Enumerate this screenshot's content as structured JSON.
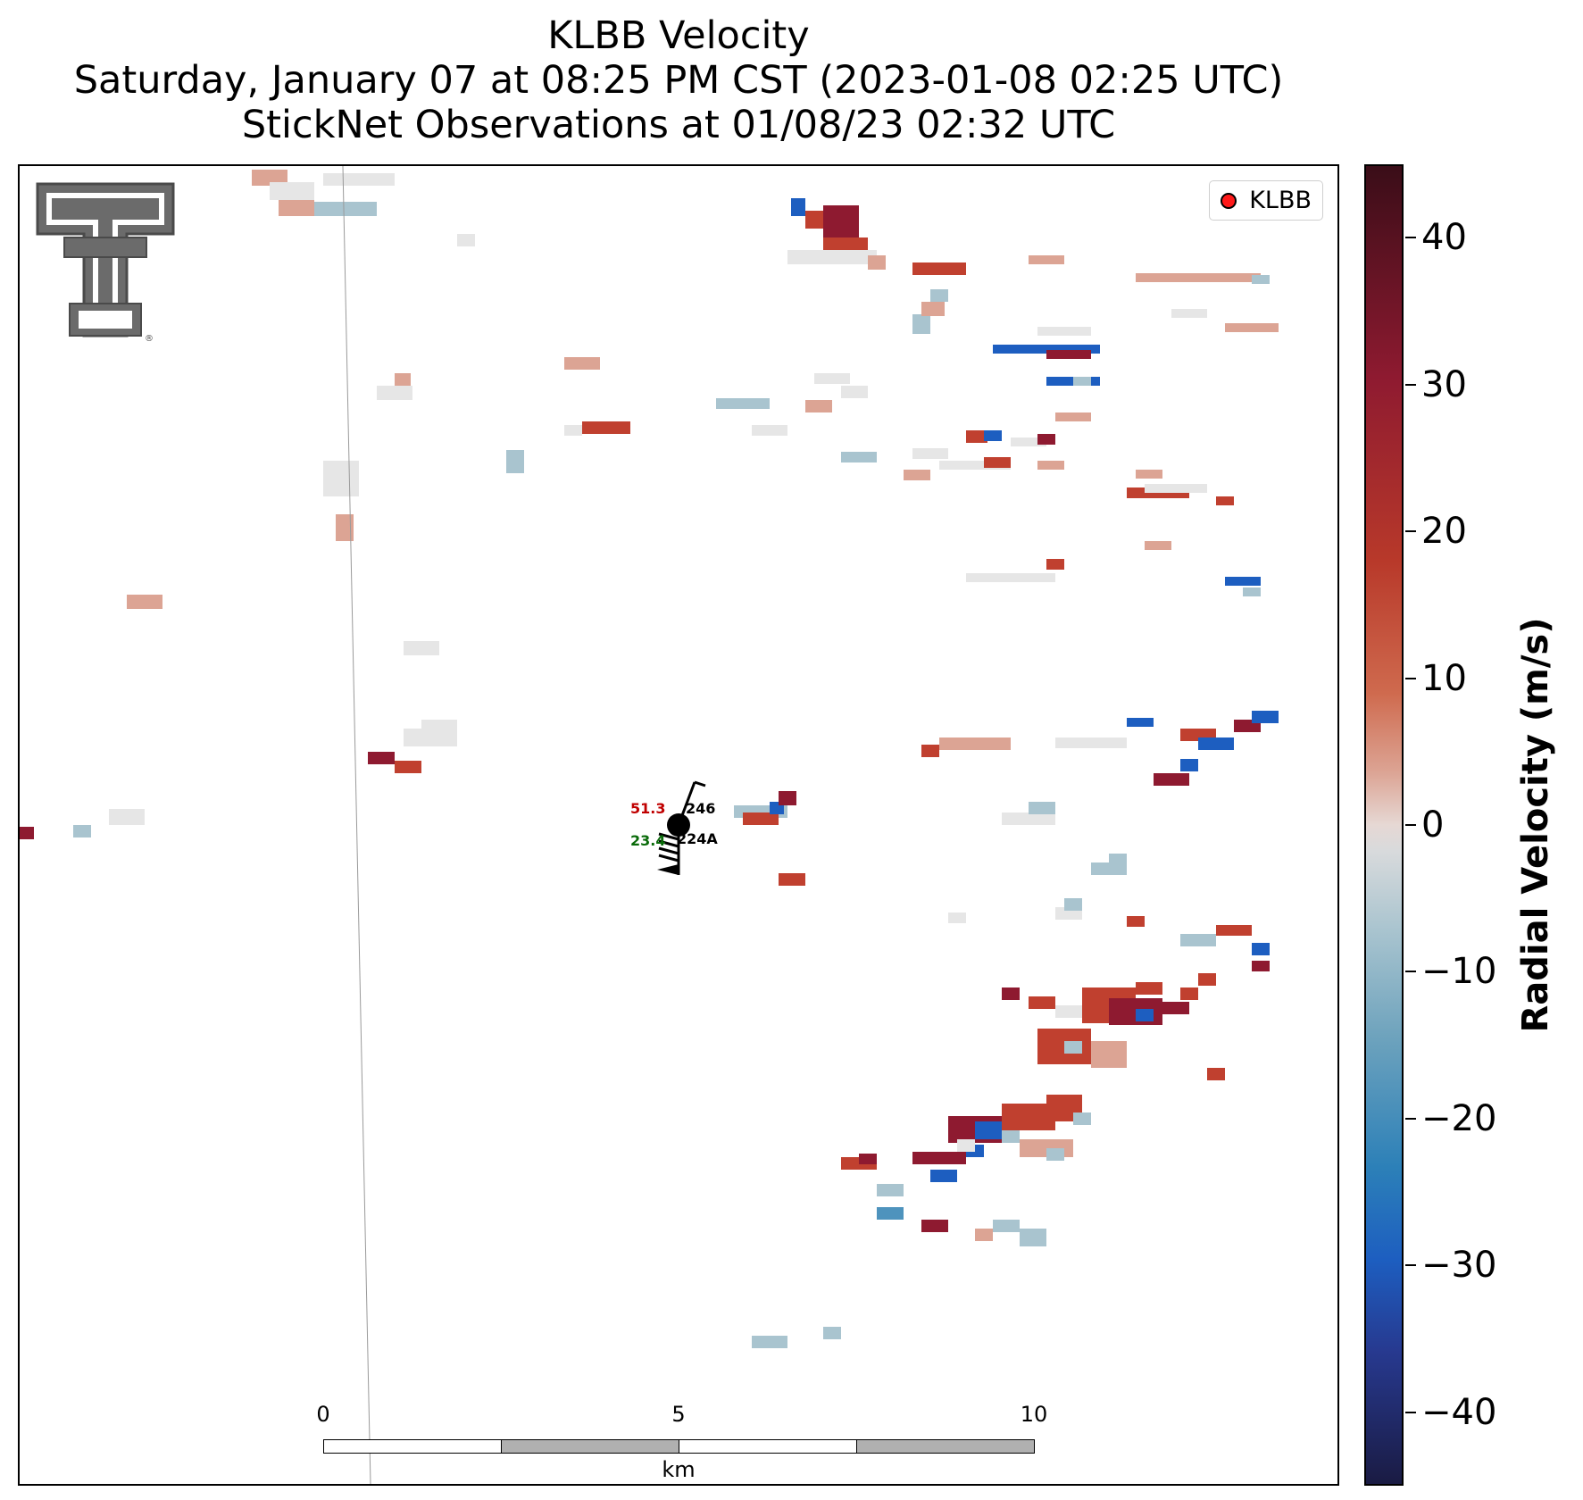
{
  "title": {
    "line1": "KLBB Velocity",
    "line2": "Saturday, January 07 at 08:25 PM CST (2023-01-08 02:25 UTC)",
    "line3": "StickNet Observations at 01/08/23 02:32 UTC"
  },
  "legend": {
    "label": "KLBB",
    "marker_color": "#ff1a1a"
  },
  "colorbar": {
    "title": "Radial Velocity (m/s)",
    "ticks": [
      "40",
      "30",
      "20",
      "10",
      "0",
      "−10",
      "−20",
      "−30",
      "−40"
    ],
    "range": [
      -45,
      45
    ],
    "colors": {
      "strong_positive": "#8e1a30",
      "moderate_positive": "#c0402f",
      "weak_positive": "#dca494",
      "zero": "#e6e6e6",
      "weak_negative": "#a9c4cf",
      "moderate_negative": "#4e93bd",
      "strong_negative": "#1d5ec0"
    }
  },
  "scale_bar": {
    "labels": [
      "0",
      "5",
      "10"
    ],
    "unit": "km"
  },
  "stations": [
    {
      "id": "246",
      "temp": "51.3",
      "dewpoint": "23.4",
      "id2": "224A"
    }
  ],
  "logo": {
    "icon": "texas-tech-double-t-logo"
  }
}
